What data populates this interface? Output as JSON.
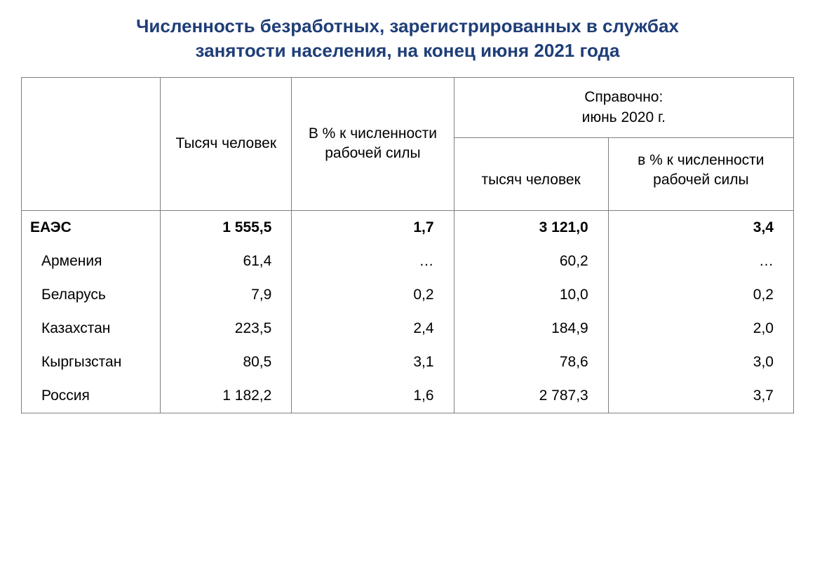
{
  "title_color": "#1f3e78",
  "border_color": "#7f7f7f",
  "background_color": "#ffffff",
  "text_color": "#000000",
  "title_line1": "Численность безработных, зарегистрированных в службах",
  "title_line2": "занятости населения, на конец июня 2021 года",
  "header": {
    "col2": "Тысяч человек",
    "col3": "В % к численности рабочей силы",
    "ref_top": "Справочно:\nиюнь 2020 г.",
    "ref_sub1": "тысяч человек",
    "ref_sub2": "в % к численности рабочей силы"
  },
  "rows": [
    {
      "label": "ЕАЭС",
      "c2": "1 555,5",
      "c3": "1,7",
      "c4": "3 121,0",
      "c5": "3,4",
      "bold": true
    },
    {
      "label": "Армения",
      "c2": "61,4",
      "c3": "…",
      "c4": "60,2",
      "c5": "…",
      "bold": false
    },
    {
      "label": "Беларусь",
      "c2": "7,9",
      "c3": "0,2",
      "c4": "10,0",
      "c5": "0,2",
      "bold": false
    },
    {
      "label": "Казахстан",
      "c2": "223,5",
      "c3": "2,4",
      "c4": "184,9",
      "c5": "2,0",
      "bold": false
    },
    {
      "label": "Кыргызстан",
      "c2": "80,5",
      "c3": "3,1",
      "c4": "78,6",
      "c5": "3,0",
      "bold": false
    },
    {
      "label": "Россия",
      "c2": "1 182,2",
      "c3": "1,6",
      "c4": "2 787,3",
      "c5": "3,7",
      "bold": false
    }
  ]
}
